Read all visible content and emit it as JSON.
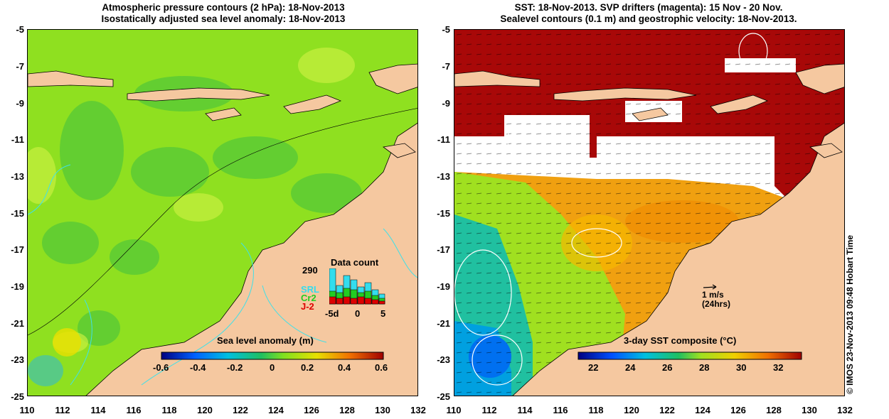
{
  "left_panel": {
    "title_line1": "Atmospheric pressure contours (2 hPa): 18-Nov-2013",
    "title_line2": "Isostatically adjusted sea level anomaly: 18-Nov-2013",
    "colorbar": {
      "label": "Sea level anomaly (m)",
      "ticks": [
        "-0.6",
        "-0.4",
        "-0.2",
        "0",
        "0.2",
        "0.4",
        "0.6"
      ],
      "range": [
        -0.6,
        0.6
      ]
    },
    "data_count": {
      "title": "Data count",
      "max_label": "290",
      "satellites": [
        {
          "name": "SRL",
          "color": "#33ddee"
        },
        {
          "name": "Cr2",
          "color": "#22cc22"
        },
        {
          "name": "J-2",
          "color": "#dd0000"
        }
      ],
      "x_labels": [
        "-5d",
        "0",
        "5"
      ]
    }
  },
  "right_panel": {
    "title_line1": "SST: 18-Nov-2013. SVP drifters (magenta): 15 Nov - 20 Nov.",
    "title_line2": "Sealevel contours (0.1 m) and geostrophic velocity: 18-Nov-2013.",
    "scale_label_1": "1 m/s",
    "scale_label_2": "(24hrs)",
    "colorbar": {
      "label": "3-day SST composite (°C)",
      "ticks": [
        "22",
        "24",
        "26",
        "28",
        "30",
        "32"
      ],
      "range": [
        21,
        33.5
      ]
    }
  },
  "axes": {
    "x_ticks": [
      "110",
      "112",
      "114",
      "116",
      "118",
      "120",
      "122",
      "124",
      "126",
      "128",
      "130",
      "132"
    ],
    "y_ticks": [
      "-5",
      "-7",
      "-9",
      "-11",
      "-13",
      "-15",
      "-17",
      "-19",
      "-21",
      "-23",
      "-25"
    ]
  },
  "credit": "© IMOS 23-Nov-2013 09:48 Hobart Time",
  "colors": {
    "land": "#f5c8a0",
    "ocean_left": "#8fe020",
    "missing": "#ffffff",
    "contour": "#40e0e8"
  }
}
